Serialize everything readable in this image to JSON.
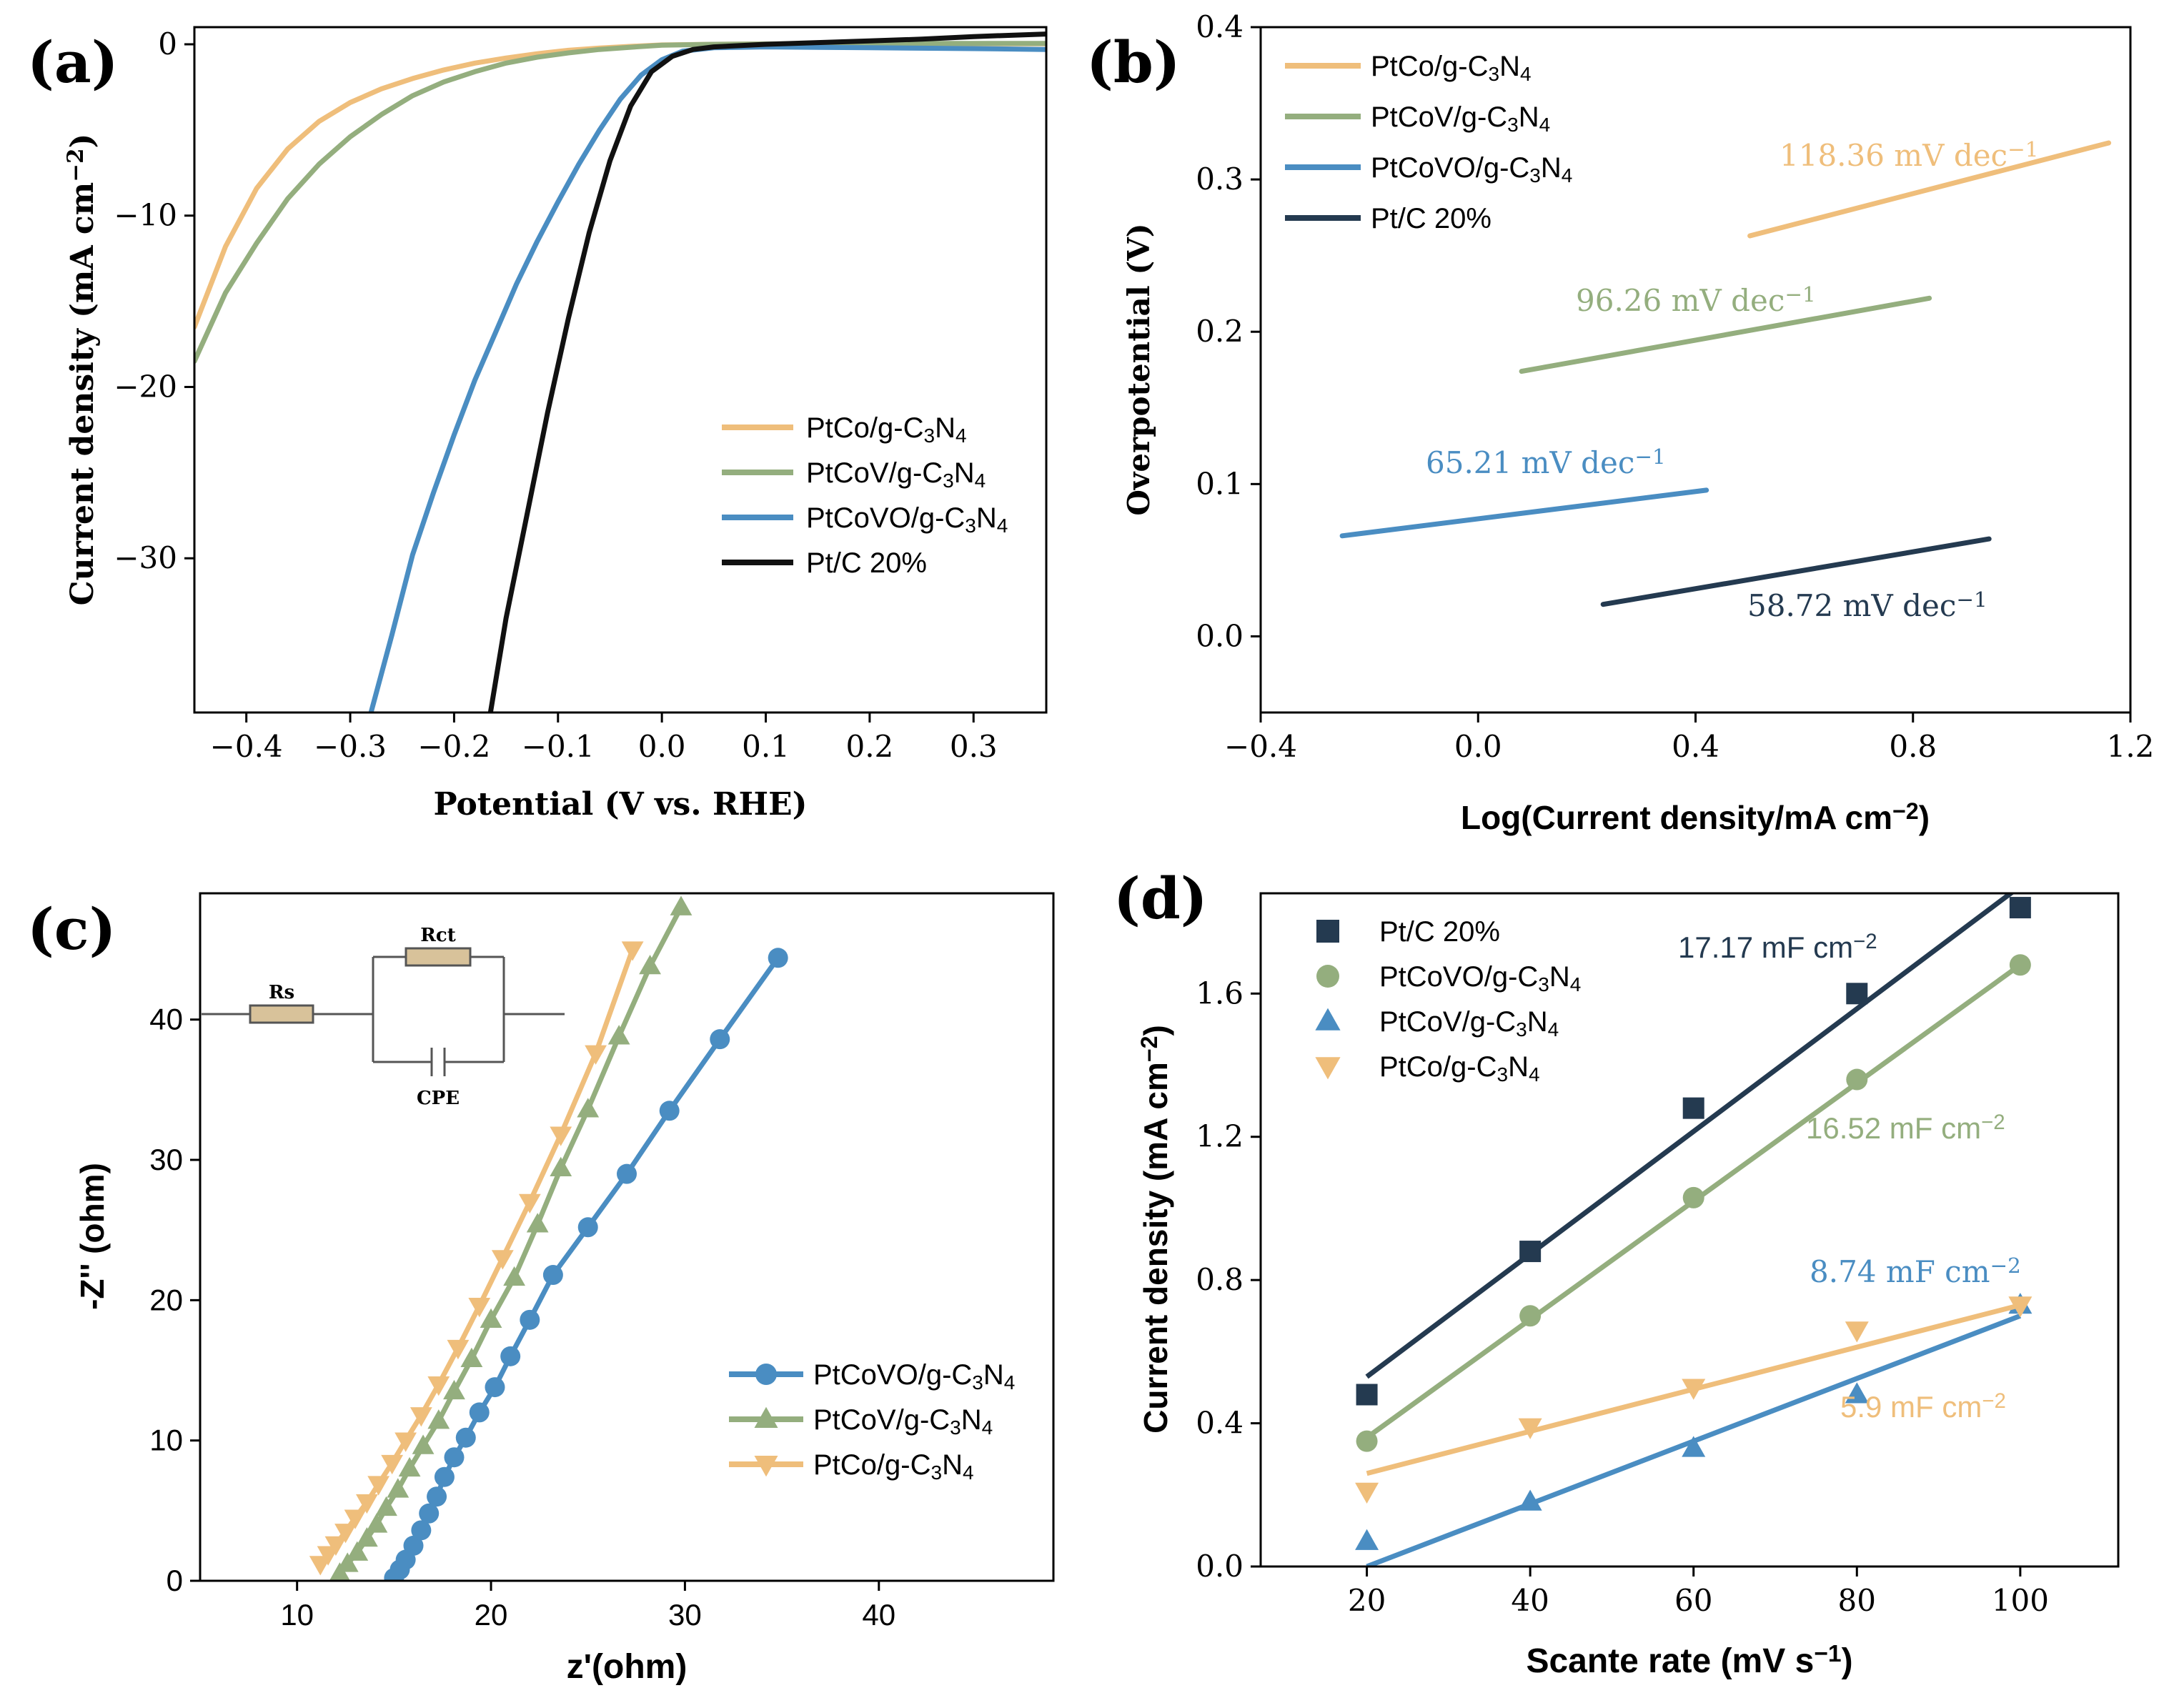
{
  "chart_data": [
    {
      "id": "a",
      "type": "line",
      "panel_label": "(a)",
      "xlabel": "Potential (V vs. RHE)",
      "ylabel": "Current density (mA cm⁻²)",
      "xlim": [
        -0.45,
        0.37
      ],
      "ylim": [
        -39,
        1
      ],
      "xticks": [
        -0.4,
        -0.3,
        -0.2,
        -0.1,
        0.0,
        0.1,
        0.2,
        0.3
      ],
      "xtick_labels": [
        "−0.4",
        "−0.3",
        "−0.2",
        "−0.1",
        "0.0",
        "0.1",
        "0.2",
        "0.3"
      ],
      "yticks": [
        0,
        -10,
        -20,
        -30
      ],
      "ytick_labels": [
        "0",
        "−10",
        "−20",
        "−30"
      ],
      "legend_position": "lower-right",
      "series": [
        {
          "name": "PtCo/g-C₃N₄",
          "color": "#EFBE7B",
          "x": [
            -0.45,
            -0.42,
            -0.39,
            -0.36,
            -0.33,
            -0.3,
            -0.27,
            -0.24,
            -0.21,
            -0.18,
            -0.15,
            -0.12,
            -0.09,
            -0.06,
            -0.03,
            0.0,
            0.05,
            0.1,
            0.2,
            0.3,
            0.37
          ],
          "y": [
            -16.5,
            -11.8,
            -8.4,
            -6.1,
            -4.5,
            -3.4,
            -2.6,
            -2.0,
            -1.5,
            -1.1,
            -0.8,
            -0.55,
            -0.35,
            -0.22,
            -0.12,
            -0.04,
            0.0,
            0.02,
            0.03,
            0.03,
            0.03
          ]
        },
        {
          "name": "PtCoV/g-C₃N₄",
          "color": "#94AE7E",
          "x": [
            -0.45,
            -0.42,
            -0.39,
            -0.36,
            -0.33,
            -0.3,
            -0.27,
            -0.24,
            -0.21,
            -0.18,
            -0.15,
            -0.12,
            -0.09,
            -0.06,
            -0.03,
            0.0,
            0.05,
            0.1,
            0.2,
            0.3,
            0.37
          ],
          "y": [
            -18.5,
            -14.5,
            -11.6,
            -9.0,
            -7.0,
            -5.4,
            -4.1,
            -3.0,
            -2.2,
            -1.6,
            -1.1,
            -0.75,
            -0.5,
            -0.3,
            -0.17,
            -0.05,
            0.0,
            0.02,
            0.05,
            0.05,
            0.05
          ]
        },
        {
          "name": "PtCoVO/g-C₃N₄",
          "color": "#4A8DC2",
          "x": [
            -0.28,
            -0.26,
            -0.24,
            -0.22,
            -0.2,
            -0.18,
            -0.16,
            -0.14,
            -0.12,
            -0.1,
            -0.08,
            -0.06,
            -0.04,
            -0.02,
            0.0,
            0.02,
            0.05,
            0.1,
            0.2,
            0.3,
            0.37
          ],
          "y": [
            -39,
            -34.5,
            -29.8,
            -26.2,
            -22.8,
            -19.6,
            -16.8,
            -14.0,
            -11.5,
            -9.2,
            -7.0,
            -5.0,
            -3.2,
            -1.8,
            -0.9,
            -0.4,
            -0.2,
            -0.15,
            -0.2,
            -0.25,
            -0.3
          ]
        },
        {
          "name": "Pt/C 20%",
          "color": "#111111",
          "x": [
            -0.165,
            -0.15,
            -0.13,
            -0.11,
            -0.09,
            -0.07,
            -0.05,
            -0.03,
            -0.01,
            0.01,
            0.03,
            0.05,
            0.1,
            0.15,
            0.2,
            0.25,
            0.3,
            0.37
          ],
          "y": [
            -39,
            -33.5,
            -27.5,
            -21.5,
            -16.0,
            -11.0,
            -6.8,
            -3.6,
            -1.6,
            -0.7,
            -0.3,
            -0.15,
            0.0,
            0.1,
            0.2,
            0.3,
            0.45,
            0.6
          ]
        }
      ]
    },
    {
      "id": "b",
      "type": "line",
      "panel_label": "(b)",
      "xlabel": "Log(Current density/mA cm⁻²)",
      "ylabel": "Overpotential (V)",
      "xlim": [
        -0.4,
        1.2
      ],
      "ylim": [
        -0.05,
        0.4
      ],
      "xticks": [
        -0.4,
        0.0,
        0.4,
        0.8,
        1.2
      ],
      "xtick_labels": [
        "−0.4",
        "0.0",
        "0.4",
        "0.8",
        "1.2"
      ],
      "yticks": [
        0.0,
        0.1,
        0.2,
        0.3,
        0.4
      ],
      "ytick_labels": [
        "0.0",
        "0.1",
        "0.2",
        "0.3",
        "0.4"
      ],
      "legend_position": "top-left",
      "series": [
        {
          "name": "PtCo/g-C₃N₄",
          "color": "#EFBE7B",
          "x": [
            0.5,
            1.16
          ],
          "y": [
            0.263,
            0.324
          ],
          "slope_label": "118.36 mV dec⁻¹"
        },
        {
          "name": "PtCoV/g-C₃N₄",
          "color": "#94AE7E",
          "x": [
            0.08,
            0.83
          ],
          "y": [
            0.174,
            0.222
          ],
          "slope_label": "96.26 mV dec⁻¹"
        },
        {
          "name": "PtCoVO/g-C₃N₄",
          "color": "#4A8DC2",
          "x": [
            -0.25,
            0.42
          ],
          "y": [
            0.066,
            0.096
          ],
          "slope_label": "65.21 mV dec⁻¹"
        },
        {
          "name": "Pt/C 20%",
          "color": "#243A50",
          "x": [
            0.23,
            0.94
          ],
          "y": [
            0.021,
            0.064
          ],
          "slope_label": "58.72 mV dec⁻¹"
        }
      ]
    },
    {
      "id": "c",
      "type": "scatter",
      "panel_label": "(c)",
      "xlabel": "z'(ohm)",
      "ylabel": "-Z'' (ohm)",
      "xlim": [
        5,
        49
      ],
      "ylim": [
        0,
        49
      ],
      "xticks": [
        10,
        20,
        30,
        40
      ],
      "xtick_labels": [
        "10",
        "20",
        "30",
        "40"
      ],
      "yticks": [
        0,
        10,
        20,
        30,
        40
      ],
      "ytick_labels": [
        "0",
        "10",
        "20",
        "30",
        "40"
      ],
      "legend_position": "lower-right",
      "inset": {
        "labels": [
          "Rs",
          "Rct",
          "CPE"
        ]
      },
      "series": [
        {
          "name": "PtCoVO/g-C₃N₄",
          "color": "#4A8DC2",
          "marker": "circle",
          "x": [
            15.0,
            15.3,
            15.6,
            16.0,
            16.4,
            16.8,
            17.2,
            17.6,
            18.1,
            18.7,
            19.4,
            20.2,
            21.0,
            22.0,
            23.2,
            25.0,
            27.0,
            29.2,
            31.8,
            34.8
          ],
          "y": [
            0.2,
            0.8,
            1.5,
            2.5,
            3.6,
            4.8,
            6.0,
            7.4,
            8.8,
            10.2,
            12.0,
            13.8,
            16.0,
            18.6,
            21.8,
            25.2,
            29.0,
            33.5,
            38.6,
            44.4
          ]
        },
        {
          "name": "PtCoV/g-C₃N₄",
          "color": "#94AE7E",
          "marker": "triangle-up",
          "x": [
            12.2,
            12.6,
            13.1,
            13.6,
            14.1,
            14.6,
            15.2,
            15.8,
            16.5,
            17.3,
            18.1,
            19.0,
            20.0,
            21.2,
            22.4,
            23.6,
            25.0,
            26.6,
            28.2,
            29.8
          ],
          "y": [
            0.5,
            1.2,
            2.0,
            3.0,
            4.0,
            5.2,
            6.5,
            8.0,
            9.6,
            11.4,
            13.5,
            15.8,
            18.6,
            21.6,
            25.4,
            29.4,
            33.6,
            38.8,
            43.8,
            48.0
          ]
        },
        {
          "name": "PtCo/g-C₃N₄",
          "color": "#EFBE7B",
          "marker": "triangle-down",
          "x": [
            11.2,
            11.6,
            12.0,
            12.5,
            13.0,
            13.6,
            14.2,
            14.9,
            15.6,
            16.4,
            17.3,
            18.3,
            19.4,
            20.6,
            22.0,
            23.6,
            25.4,
            27.3
          ],
          "y": [
            1.2,
            1.9,
            2.6,
            3.5,
            4.5,
            5.6,
            6.9,
            8.4,
            10.0,
            11.8,
            14.0,
            16.6,
            19.6,
            23.0,
            27.0,
            31.8,
            37.6,
            45.0
          ]
        }
      ]
    },
    {
      "id": "d",
      "type": "scatter",
      "panel_label": "(d)",
      "xlabel": "Scante rate (mV s⁻¹)",
      "ylabel": "Current density (mA cm⁻²)",
      "xlim": [
        7,
        112
      ],
      "ylim": [
        0,
        1.88
      ],
      "xticks": [
        20,
        40,
        60,
        80,
        100
      ],
      "xtick_labels": [
        "20",
        "40",
        "60",
        "80",
        "100"
      ],
      "yticks": [
        0.0,
        0.4,
        0.8,
        1.2,
        1.6
      ],
      "ytick_labels": [
        "0.0",
        "0.4",
        "0.8",
        "1.2",
        "1.6"
      ],
      "legend_position": "top-left",
      "series": [
        {
          "name": "Pt/C 20%",
          "color": "#243A50",
          "marker": "square",
          "x": [
            20,
            40,
            60,
            80,
            100
          ],
          "y": [
            0.48,
            0.88,
            1.28,
            1.6,
            1.84
          ],
          "fit": [
            0.53,
            1.9
          ],
          "slope_label": "17.17 mF cm⁻²"
        },
        {
          "name": "PtCoVO/g-C₃N₄",
          "color": "#94AE7E",
          "marker": "circle",
          "x": [
            20,
            40,
            60,
            80,
            100
          ],
          "y": [
            0.35,
            0.7,
            1.03,
            1.36,
            1.68
          ],
          "fit": [
            0.36,
            1.68
          ],
          "slope_label": "16.52 mF cm⁻²"
        },
        {
          "name": "PtCoV/g-C₃N₄",
          "color": "#4A8DC2",
          "marker": "triangle-up",
          "x": [
            20,
            40,
            60,
            80,
            100
          ],
          "y": [
            0.07,
            0.18,
            0.33,
            0.48,
            0.73
          ],
          "fit": [
            0.0,
            0.7
          ],
          "slope_label": "8.74 mF cm⁻²"
        },
        {
          "name": "PtCo/g-C₃N₄",
          "color": "#EFBE7B",
          "marker": "triangle-down",
          "x": [
            20,
            40,
            60,
            80,
            100
          ],
          "y": [
            0.21,
            0.39,
            0.5,
            0.66,
            0.73
          ],
          "fit": [
            0.26,
            0.73
          ],
          "slope_label": "5.9 mF cm⁻²"
        }
      ]
    }
  ]
}
